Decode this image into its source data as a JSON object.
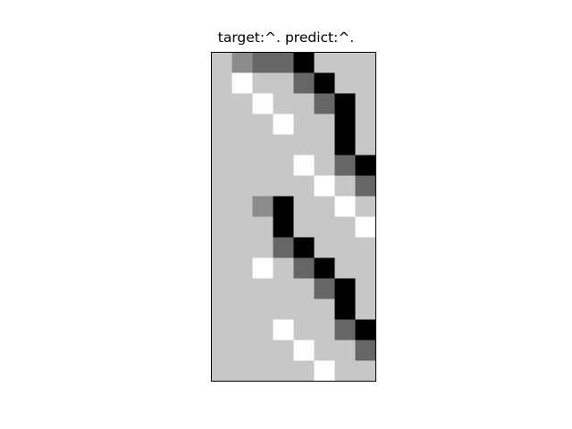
{
  "chart_data": {
    "type": "heatmap",
    "title": "target:^. predict:^.",
    "xlabel": "",
    "ylabel": "",
    "grid": false,
    "colormap": "gray",
    "levels": [
      0,
      0.4,
      0.55,
      0.78,
      1
    ],
    "level_names": [
      "black",
      "dark-gray",
      "mid-gray",
      "light-gray",
      "white"
    ],
    "matrix": [
      [
        3,
        2,
        1,
        1,
        0,
        3,
        3,
        3
      ],
      [
        3,
        4,
        3,
        3,
        1,
        0,
        3,
        3
      ],
      [
        3,
        3,
        4,
        3,
        3,
        1,
        0,
        3
      ],
      [
        3,
        3,
        3,
        4,
        3,
        3,
        0,
        3
      ],
      [
        3,
        3,
        3,
        3,
        3,
        3,
        0,
        3
      ],
      [
        3,
        3,
        3,
        3,
        4,
        3,
        1,
        0
      ],
      [
        3,
        3,
        3,
        3,
        3,
        4,
        3,
        1
      ],
      [
        3,
        3,
        2,
        0,
        3,
        3,
        4,
        3
      ],
      [
        3,
        3,
        3,
        0,
        3,
        3,
        3,
        4
      ],
      [
        3,
        3,
        3,
        1,
        0,
        3,
        3,
        3
      ],
      [
        3,
        3,
        4,
        3,
        1,
        0,
        3,
        3
      ],
      [
        3,
        3,
        3,
        3,
        3,
        1,
        0,
        3
      ],
      [
        3,
        3,
        3,
        3,
        3,
        3,
        0,
        3
      ],
      [
        3,
        3,
        3,
        4,
        3,
        3,
        1,
        0
      ],
      [
        3,
        3,
        3,
        3,
        4,
        3,
        3,
        1
      ],
      [
        3,
        3,
        3,
        3,
        3,
        4,
        3,
        3
      ]
    ]
  }
}
